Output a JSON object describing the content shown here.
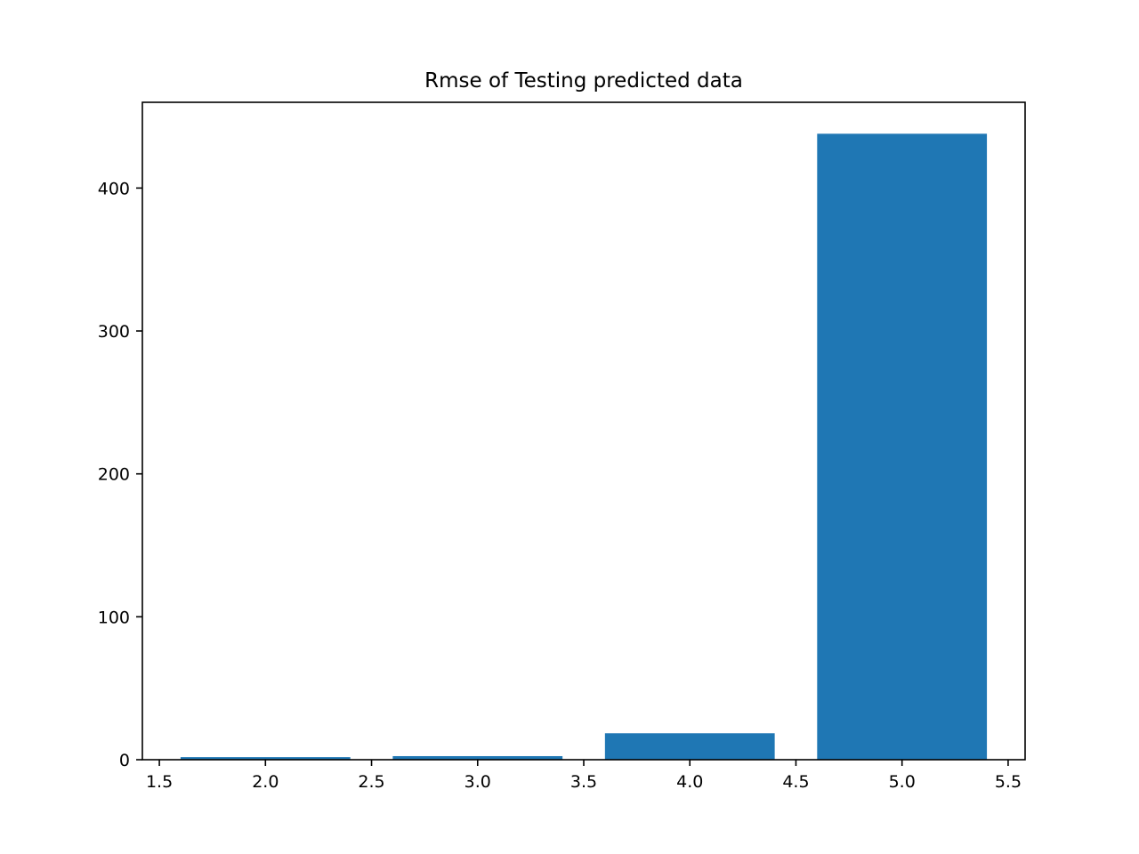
{
  "chart_data": {
    "type": "bar",
    "title": "Rmse of Testing predicted data",
    "xlabel": "",
    "ylabel": "",
    "x": [
      2,
      3,
      4,
      5
    ],
    "values": [
      1.8,
      2.5,
      18.5,
      438
    ],
    "bar_width": 0.8,
    "xlim": [
      1.42,
      5.58
    ],
    "ylim": [
      0,
      460
    ],
    "xticks": [
      1.5,
      2.0,
      2.5,
      3.0,
      3.5,
      4.0,
      4.5,
      5.0,
      5.5
    ],
    "xtick_labels": [
      "1.5",
      "2.0",
      "2.5",
      "3.0",
      "3.5",
      "4.0",
      "4.5",
      "5.0",
      "5.5"
    ],
    "yticks": [
      0,
      100,
      200,
      300,
      400
    ],
    "ytick_labels": [
      "0",
      "100",
      "200",
      "300",
      "400"
    ],
    "bar_color": "#1f77b4",
    "grid": false,
    "legend": "none"
  }
}
